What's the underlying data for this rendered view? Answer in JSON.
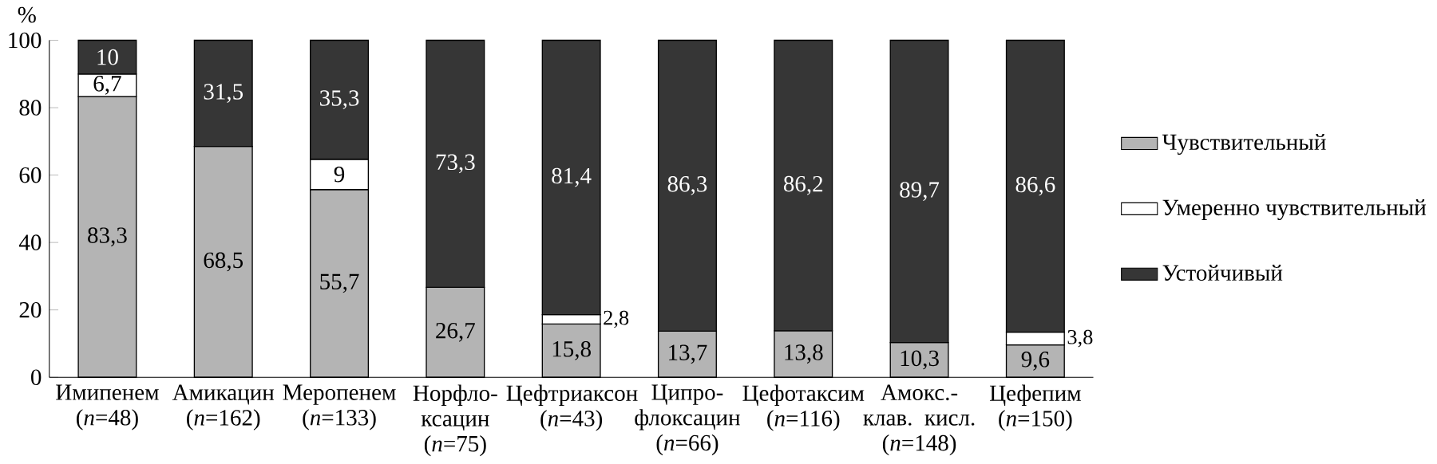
{
  "chart_data": {
    "type": "bar",
    "stacked": true,
    "ylabel": "%",
    "ylim": [
      0,
      100
    ],
    "yticks": [
      0,
      20,
      40,
      60,
      80,
      100
    ],
    "legend": "right",
    "grid": false,
    "categories": [
      "Имипенем (*n*=48)",
      "Амикацин (*n*=162)",
      "Меропенем (*n*=133)",
      "Норфло-ксацин (*n*=75)",
      "Цефтриаксон (*n*=43)",
      "Ципро-флоксацин (*n*=66)",
      "Цефотаксим (*n*=116)",
      "Амокс.-клав. кисл. (*n*=148)",
      "Цефепим (*n*=150)"
    ],
    "series": [
      {
        "name": "Чувствительный",
        "color": "#b4b4b4",
        "values": [
          83.3,
          68.5,
          55.7,
          26.7,
          15.8,
          13.7,
          13.8,
          10.3,
          9.6
        ],
        "value_labels": [
          "83,3",
          "68,5",
          "55,7",
          "26,7",
          "15,8",
          "13,7",
          "13,8",
          "10,3",
          "9,6"
        ]
      },
      {
        "name": "Умеренно чувствительный",
        "color": "#ffffff",
        "values": [
          6.7,
          null,
          9,
          null,
          2.8,
          null,
          null,
          null,
          3.8
        ],
        "value_labels": [
          "6,7",
          null,
          "9",
          null,
          "2,8",
          null,
          null,
          null,
          "3,8"
        ]
      },
      {
        "name": "Устойчивый",
        "color": "#363636",
        "values": [
          10,
          31.5,
          35.3,
          73.3,
          81.4,
          86.3,
          86.2,
          89.7,
          86.6
        ],
        "value_labels": [
          "10",
          "31,5",
          "35,3",
          "73,3",
          "81,4",
          "86,3",
          "86,2",
          "89,7",
          "86,6"
        ]
      }
    ]
  }
}
